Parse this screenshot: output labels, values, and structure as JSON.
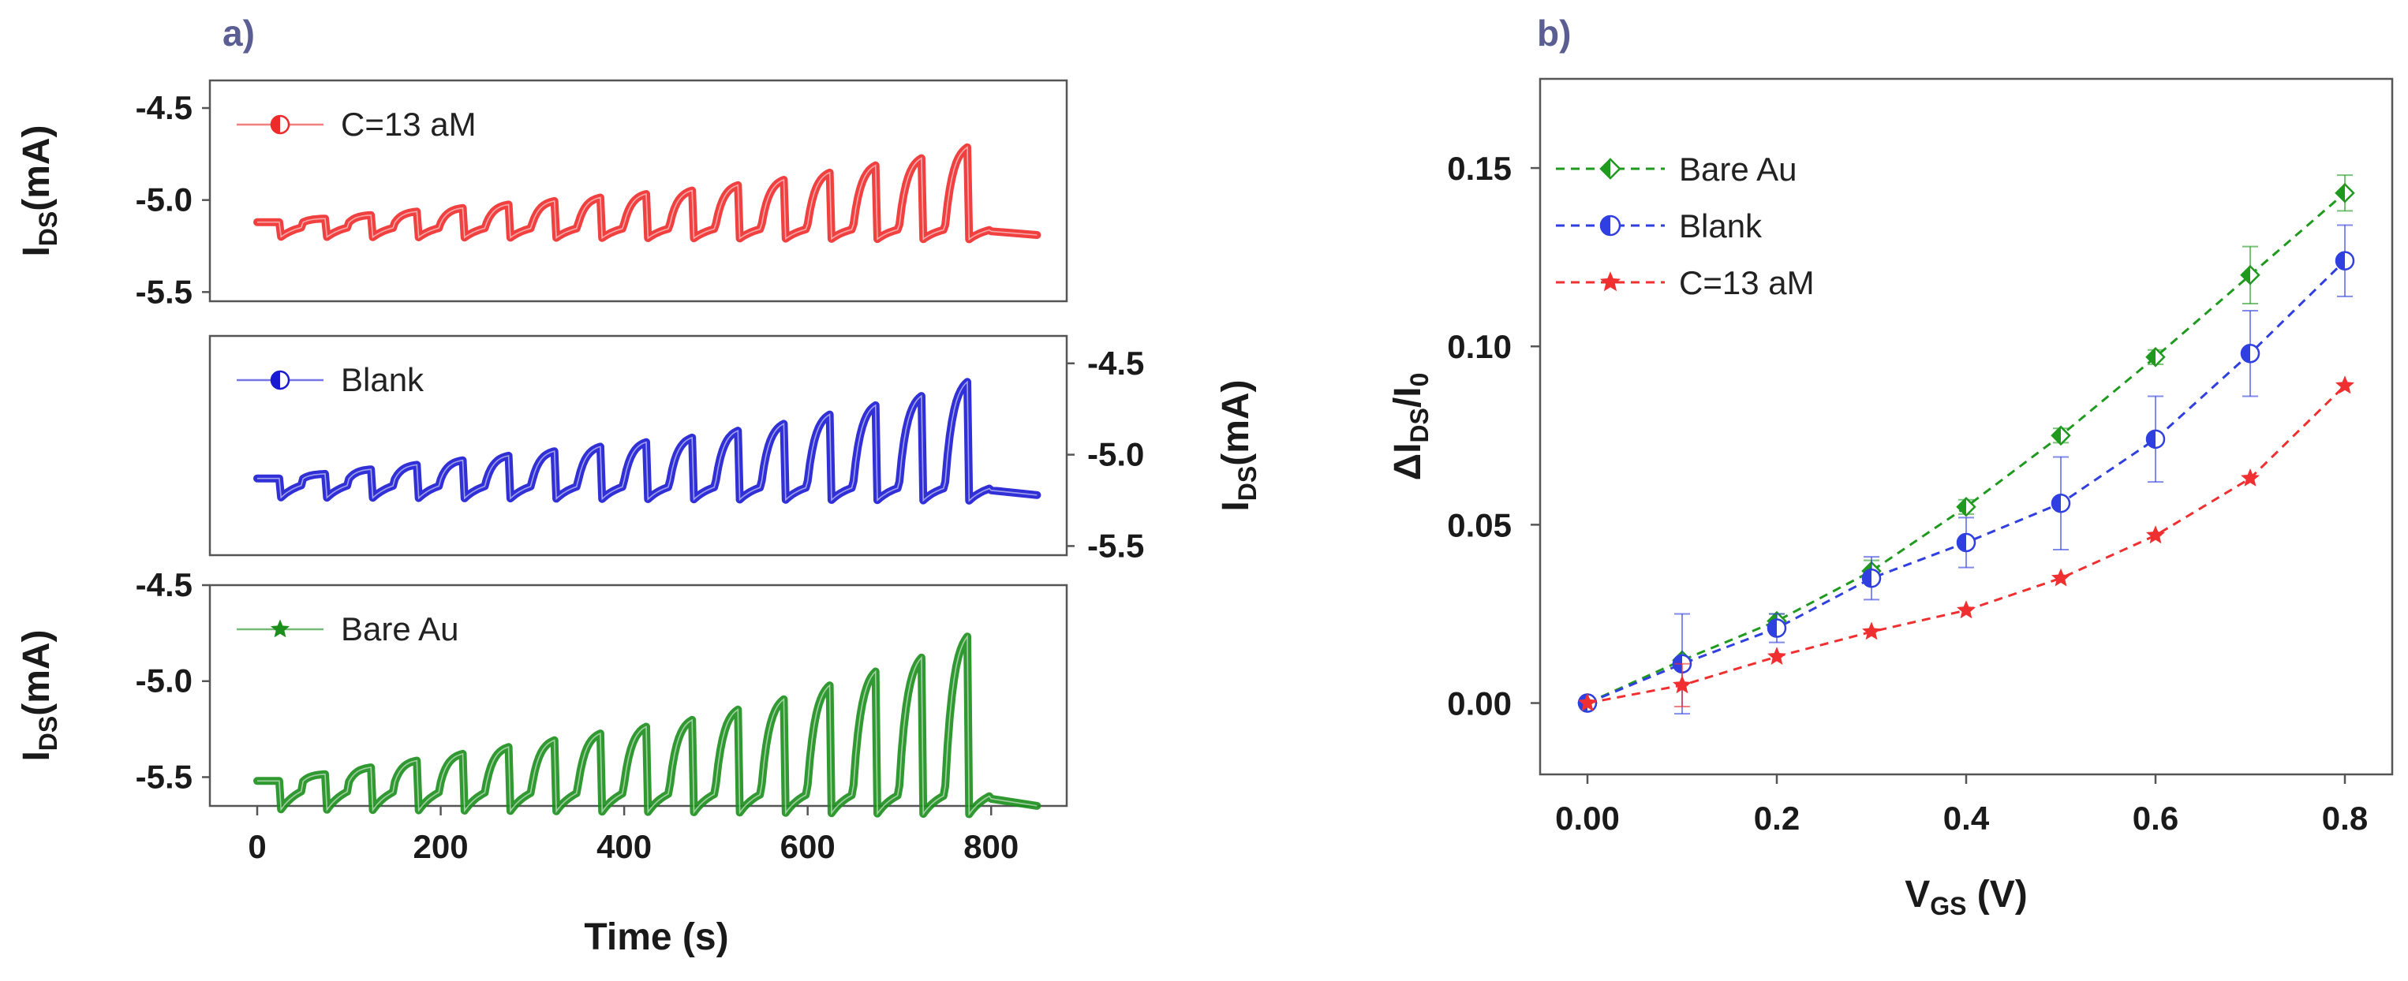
{
  "panel_labels": {
    "a": "a)",
    "b": "b)"
  },
  "chart_data": [
    {
      "type": "line",
      "panel": "a",
      "title": "",
      "xlabel": "Time (s)",
      "ylabel": "IDS(mA)",
      "ylabel_main": "I",
      "ylabel_sub": "DS",
      "ylabel_unit": "(mA)",
      "xlim": [
        -20,
        880
      ],
      "xticks": [
        0,
        200,
        400,
        600,
        800
      ],
      "pulse_starts": [
        0,
        50,
        100,
        150,
        200,
        250,
        300,
        350,
        400,
        450,
        500,
        550,
        600,
        650,
        700,
        750
      ],
      "pulse_heights": [
        0.0,
        0.02,
        0.04,
        0.06,
        0.08,
        0.1,
        0.12,
        0.14,
        0.16,
        0.18,
        0.21,
        0.24,
        0.28,
        0.32,
        0.36,
        0.42
      ],
      "subplots": [
        {
          "name": "C=13 aM",
          "color": "#ee2b2b",
          "marker": "half-circle",
          "ylim": [
            -5.55,
            -4.35
          ],
          "yticks": [
            -4.5,
            -5.0,
            -5.5
          ],
          "tick_labels": [
            "-4.5",
            "-5.0",
            "-5.5"
          ],
          "axis_side": "left",
          "baseline": -5.12,
          "scale": 1.0
        },
        {
          "name": "Blank",
          "color": "#1a1ad2",
          "marker": "half-circle",
          "ylim": [
            -5.55,
            -4.35
          ],
          "yticks": [
            -4.5,
            -5.0,
            -5.5
          ],
          "tick_labels": [
            "-4.5",
            "-5.0",
            "-5.5"
          ],
          "axis_side": "right",
          "baseline": -5.13,
          "scale": 1.3
        },
        {
          "name": "Bare Au",
          "color": "#1b8e1b",
          "marker": "star",
          "ylim": [
            -5.65,
            -4.5
          ],
          "yticks": [
            -4.5,
            -5.0,
            -5.5
          ],
          "tick_labels": [
            "-4.5",
            "-5.0",
            "-5.5"
          ],
          "axis_side": "left",
          "baseline": -5.52,
          "scale": 1.85
        }
      ]
    },
    {
      "type": "line",
      "panel": "b",
      "title": "",
      "xlabel": "VGS (V)",
      "xlabel_main": "V",
      "xlabel_sub": "GS",
      "xlabel_unit": " (V)",
      "ylabel": "ΔIDS/I0",
      "ylabel_main": "ΔI",
      "ylabel_sub": "DS",
      "ylabel_mid": "/I",
      "ylabel_sub2": "0",
      "xlim": [
        -0.05,
        0.85
      ],
      "ylim": [
        -0.02,
        0.175
      ],
      "xticks": [
        0.0,
        0.2,
        0.4,
        0.6,
        0.8
      ],
      "xtick_labels": [
        "0.00",
        "0.2",
        "0.4",
        "0.6",
        "0.8"
      ],
      "yticks": [
        0.0,
        0.05,
        0.1,
        0.15
      ],
      "ytick_labels": [
        "0.00",
        "0.05",
        "0.10",
        "0.15"
      ],
      "x": [
        0.0,
        0.1,
        0.2,
        0.3,
        0.4,
        0.5,
        0.6,
        0.7,
        0.8
      ],
      "legend_position": "top-left",
      "series": [
        {
          "name": "Bare Au",
          "color": "#1f9a1f",
          "marker": "diamond",
          "values": [
            0.0,
            0.012,
            0.023,
            0.037,
            0.055,
            0.075,
            0.097,
            0.12,
            0.143
          ],
          "errors": [
            0.0,
            0.0,
            0.002,
            0.003,
            0.002,
            0.002,
            0.002,
            0.008,
            0.005
          ]
        },
        {
          "name": "Blank",
          "color": "#2f3fe0",
          "marker": "half-circle",
          "values": [
            0.0,
            0.011,
            0.021,
            0.035,
            0.045,
            0.056,
            0.074,
            0.098,
            0.124
          ],
          "errors": [
            0.0,
            0.014,
            0.004,
            0.006,
            0.007,
            0.013,
            0.012,
            0.012,
            0.01
          ]
        },
        {
          "name": "C=13 aM",
          "color": "#f03030",
          "marker": "star",
          "values": [
            0.0,
            0.005,
            0.013,
            0.02,
            0.026,
            0.035,
            0.047,
            0.063,
            0.089
          ],
          "errors": [
            0.0,
            0.006,
            0.0,
            0.0,
            0.0,
            0.0,
            0.0,
            0.0,
            0.0
          ]
        }
      ]
    }
  ]
}
